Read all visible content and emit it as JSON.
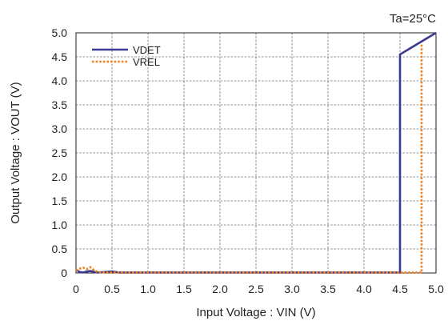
{
  "chart_data": {
    "type": "line",
    "annotation": "Ta=25°C",
    "xlabel": "Input Voltage : VIN (V)",
    "ylabel": "Output Voltage : VOUT (V)",
    "xlim": [
      0,
      5.0
    ],
    "ylim": [
      0,
      5.0
    ],
    "x_ticks": [
      "0",
      "0.5",
      "1.0",
      "1.5",
      "2.0",
      "2.5",
      "3.0",
      "3.5",
      "4.0",
      "4.5",
      "5.0"
    ],
    "y_ticks": [
      "0",
      "0.5",
      "1.0",
      "1.5",
      "2.0",
      "2.5",
      "3.0",
      "3.5",
      "4.0",
      "4.5",
      "5.0"
    ],
    "grid": true,
    "legend_position": "top-left",
    "series": [
      {
        "name": "VDET",
        "color": "#3b3b91",
        "style": "solid",
        "x": [
          0,
          0.05,
          0.1,
          0.15,
          0.2,
          0.3,
          0.4,
          0.5,
          0.6,
          4.5,
          4.5,
          5.0
        ],
        "y": [
          0.07,
          0.02,
          0.01,
          0.03,
          0.04,
          0.01,
          0.02,
          0.03,
          0.01,
          0.01,
          4.55,
          5.0
        ]
      },
      {
        "name": "VREL",
        "color": "#f07f21",
        "style": "dotted",
        "x": [
          0,
          0.05,
          0.1,
          0.15,
          0.2,
          0.25,
          0.3,
          0.4,
          0.5,
          4.8,
          4.8
        ],
        "y": [
          0.05,
          0.09,
          0.11,
          0.08,
          0.12,
          0.06,
          0.02,
          0.01,
          0.01,
          0.01,
          4.78
        ]
      }
    ]
  }
}
